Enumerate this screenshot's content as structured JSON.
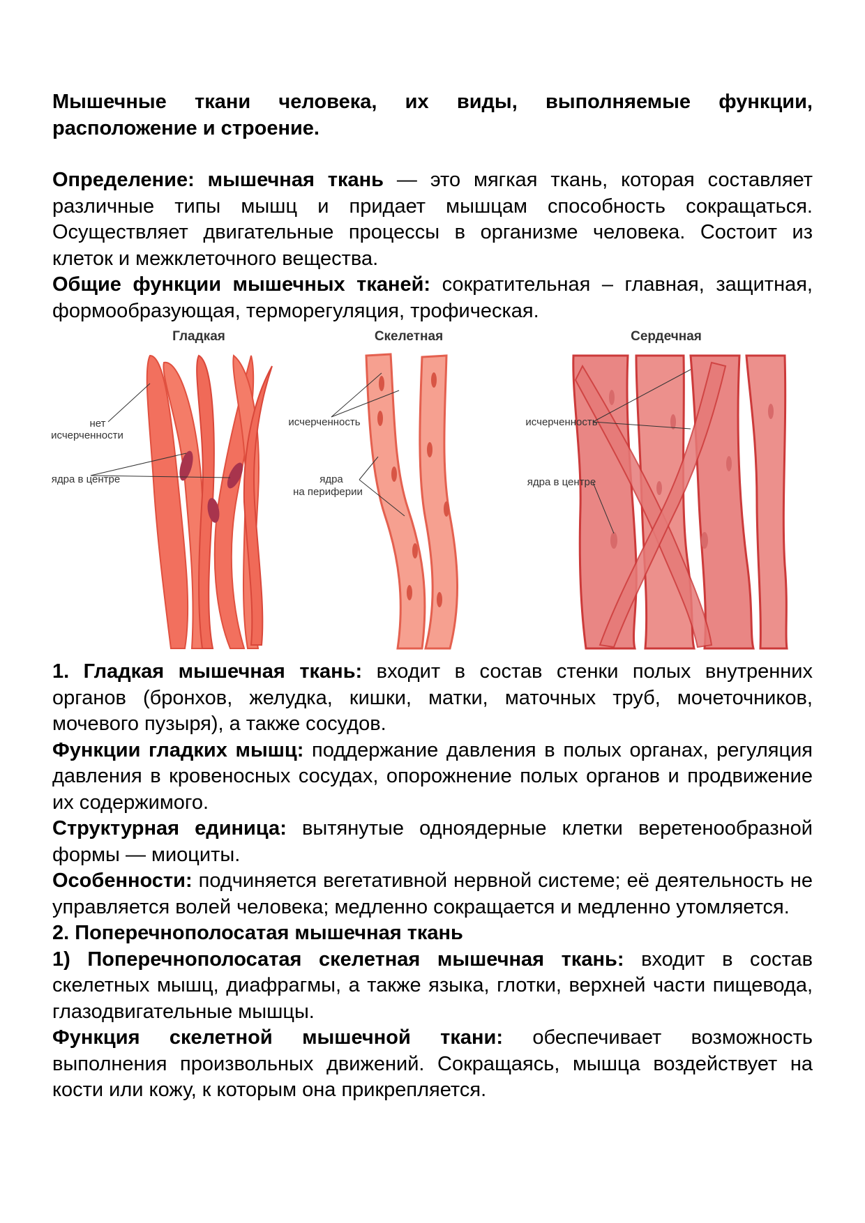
{
  "title": "Мышечные ткани человека, их виды, выполняемые функции, расположение и строение.",
  "definition": {
    "label": "Определение: мышечная ткань",
    "text": " — это мягкая ткань, которая составляет различные типы мышц и придает мышцам способность сокращаться. Осуществляет двигательные процессы в организме человека. Состоит из клеток и межклеточного вещества."
  },
  "general_functions": {
    "label": "Общие функции мышечных тканей:",
    "text": " сократительная – главная, защитная, формообразующая, терморегуляция, трофическая."
  },
  "figure": {
    "smooth": {
      "title": "Гладкая",
      "label_no_striation_1": "нет",
      "label_no_striation_2": "исчерченности",
      "label_nuclei": "ядра в центре"
    },
    "skeletal": {
      "title": "Скелетная",
      "label_striation": "исчерченность",
      "label_nuclei_1": "ядра",
      "label_nuclei_2": "на периферии"
    },
    "cardiac": {
      "title": "Сердечная",
      "label_striation": "исчерченность",
      "label_nuclei": "ядра в центре"
    },
    "colors": {
      "smooth_fill": "#f2705e",
      "smooth_dark": "#e0503f",
      "smooth_nucleus": "#a8344d",
      "skeletal_fill": "#f6a090",
      "skeletal_dark": "#e4604f",
      "skeletal_nucleus": "#d85545",
      "cardiac_fill": "#e98684",
      "cardiac_dark": "#cc3a3a",
      "cardiac_nucleus": "#d86a6a",
      "title_color": "#333333",
      "label_color": "#333333"
    }
  },
  "smooth": {
    "heading": "1. Гладкая мышечная ткань:",
    "heading_text": " входит в состав стенки полых внутренних органов (бронхов, желудка, кишки, матки, маточных труб, мочеточников, мочевого пузыря), а также сосудов.",
    "functions_label": "Функции гладких мышц:",
    "functions_text": " поддержание давления в полых органах, регуляция давления в кровеносных сосудах, опорожнение полых органов и продвижение их содержимого.",
    "unit_label": "Структурная единица:",
    "unit_text": " вытянутые одноядерные клетки веретенообразной формы — миоциты.",
    "features_label": "Особенности:",
    "features_text": " подчиняется вегетативной нервной системе; её деятельность не управляется волей человека; медленно сокращается и медленно утомляется."
  },
  "striated": {
    "heading": "2. Поперечнополосатая мышечная ткань",
    "skeletal_label": "1) Поперечнополосатая скелетная мышечная ткань:",
    "skeletal_text": " входит в состав скелетных мышц, диафрагмы, а также языка, глотки, верхней части пищевода, глазодвигательные мышцы.",
    "function_label": "Функция скелетной мышечной ткани:",
    "function_text": " обеспечивает возможность выполнения произвольных движений. Сокращаясь, мышца воздействует на кости или кожу, к которым она прикрепляется."
  }
}
